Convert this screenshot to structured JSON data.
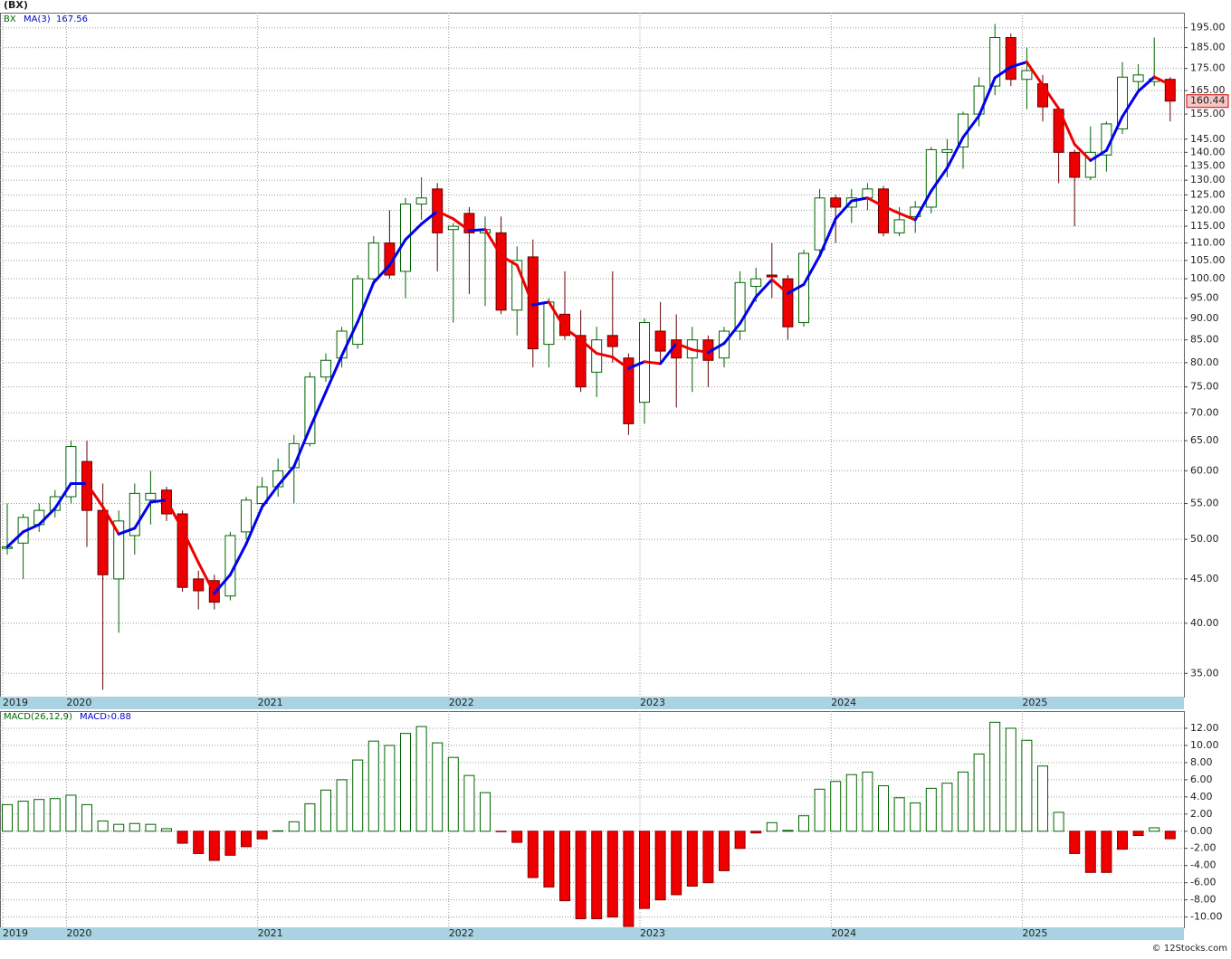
{
  "chart_data": [
    {
      "type": "candlestick",
      "title": "(BX)",
      "symbol": "BX",
      "categories": [
        "2019",
        null,
        null,
        null,
        "2020",
        null,
        null,
        null,
        null,
        null,
        null,
        null,
        null,
        null,
        null,
        null,
        "2021",
        null,
        null,
        null,
        null,
        null,
        null,
        null,
        null,
        null,
        null,
        null,
        "2022",
        null,
        null,
        null,
        null,
        null,
        null,
        null,
        null,
        null,
        null,
        null,
        "2023",
        null,
        null,
        null,
        null,
        null,
        null,
        null,
        null,
        null,
        null,
        null,
        "2024",
        null,
        null,
        null,
        null,
        null,
        null,
        null,
        null,
        null,
        null,
        null,
        "2025",
        null,
        null,
        null,
        null,
        null,
        null,
        null,
        null,
        null
      ],
      "open": [
        48.8,
        49.5,
        52,
        54,
        56,
        61.5,
        54,
        45,
        50.5,
        55.5,
        57,
        53.5,
        45,
        44.8,
        43,
        51,
        55,
        57.5,
        60.5,
        64.5,
        77,
        81,
        84,
        100,
        110,
        102,
        122,
        127,
        114,
        119,
        113,
        113,
        92,
        106,
        84,
        91,
        86,
        78,
        86,
        81,
        72,
        87,
        85,
        81,
        85,
        81,
        87,
        98,
        101,
        100,
        89,
        108,
        124,
        121,
        124,
        127,
        113,
        118,
        121,
        140,
        142,
        155,
        167,
        190,
        170,
        168,
        157,
        140,
        131,
        139,
        149,
        169,
        169,
        170
      ],
      "high": [
        55,
        53.5,
        55,
        57,
        65,
        65,
        58,
        54,
        58,
        60,
        57.5,
        54,
        46,
        45.5,
        51,
        56,
        59,
        62,
        66,
        78,
        82,
        88,
        101,
        112,
        120,
        124,
        131,
        129,
        116,
        121,
        118,
        118,
        109,
        111,
        95,
        102,
        92,
        88,
        102,
        82,
        90,
        94,
        91,
        88,
        86,
        88,
        102,
        103,
        110,
        101,
        108,
        127,
        125,
        127,
        129,
        128,
        121,
        123,
        142,
        145,
        156,
        171,
        197,
        192,
        185,
        172,
        158,
        141,
        150,
        152,
        178,
        177,
        190,
        171
      ],
      "low": [
        48,
        45,
        51,
        53,
        55,
        49,
        33.5,
        39,
        48,
        52,
        52.5,
        43.5,
        41.5,
        41.5,
        42.5,
        50,
        54,
        56,
        55,
        64,
        76,
        79,
        83,
        99,
        100,
        95,
        117,
        102,
        89,
        96,
        93,
        91,
        86,
        79,
        79,
        85,
        74,
        73,
        80,
        66,
        68,
        80,
        71,
        74,
        75,
        79,
        85,
        94,
        95,
        85,
        88,
        107,
        110,
        116,
        120,
        112,
        112,
        113,
        119,
        131,
        134,
        150,
        163,
        167,
        157,
        152,
        129,
        115,
        130,
        133,
        147,
        165,
        167,
        152
      ],
      "close": [
        49,
        53,
        54,
        56,
        64,
        54,
        45.5,
        52.5,
        56.5,
        56.5,
        53.5,
        44,
        43.6,
        42.3,
        50.5,
        55.5,
        57.5,
        60,
        64.5,
        77,
        80.5,
        87,
        100,
        110,
        101,
        122,
        124,
        113,
        115,
        113,
        114,
        92,
        105,
        83,
        94,
        86,
        75,
        85,
        83.5,
        68,
        89,
        82.5,
        81,
        85,
        80.5,
        87,
        99,
        100,
        100.5,
        88,
        107,
        124,
        121,
        124,
        127,
        113,
        117,
        121,
        141,
        141,
        155,
        167,
        190,
        170,
        174,
        158,
        140,
        131,
        140,
        151,
        171,
        172,
        170.25,
        160.44
      ],
      "up_color": "#006400",
      "down_color": "#ee0000",
      "series": [
        {
          "name": "MA(3)",
          "up_color": "#0000ee",
          "down_color": "#ee0000",
          "values": [
            49,
            51,
            52.0,
            54.3,
            58.0,
            58.0,
            54.5,
            50.7,
            51.5,
            55.2,
            55.5,
            51.3,
            47.0,
            43.3,
            45.5,
            49.4,
            54.5,
            57.7,
            60.7,
            67.2,
            74.0,
            81.5,
            89.2,
            99.0,
            103.7,
            111.0,
            115.7,
            119.7,
            117.3,
            113.7,
            114.0,
            106.3,
            103.7,
            93.3,
            94.0,
            87.7,
            85.0,
            82.0,
            81.2,
            78.8,
            80.2,
            79.8,
            84.2,
            82.8,
            82.2,
            84.2,
            88.8,
            95.3,
            99.8,
            96.2,
            98.5,
            106.3,
            117.3,
            123.0,
            124.0,
            121.3,
            119.0,
            117.0,
            126.3,
            134.3,
            145.7,
            154.3,
            170.7,
            175.7,
            178.0,
            167.3,
            157.3,
            143.0,
            137.0,
            140.7,
            154.0,
            164.7,
            171.1,
            167.56
          ]
        }
      ],
      "log_scale": true,
      "grid": true,
      "ylim": [
        32.9,
        203
      ],
      "yticks": [
        {
          "value": 35,
          "label": "35.00"
        },
        {
          "value": 40,
          "label": "40.00"
        },
        {
          "value": 45,
          "label": "45.00"
        },
        {
          "value": 50,
          "label": "50.00"
        },
        {
          "value": 55,
          "label": "55.00"
        },
        {
          "value": 60,
          "label": "60.00"
        },
        {
          "value": 65,
          "label": "65.00"
        },
        {
          "value": 70,
          "label": "70.00"
        },
        {
          "value": 75,
          "label": "75.00"
        },
        {
          "value": 80,
          "label": "80.00"
        },
        {
          "value": 85,
          "label": "85.00"
        },
        {
          "value": 90,
          "label": "90.00"
        },
        {
          "value": 95,
          "label": "95.00"
        },
        {
          "value": 100,
          "label": "100.00"
        },
        {
          "value": 105,
          "label": "105.00"
        },
        {
          "value": 110,
          "label": "110.00"
        },
        {
          "value": 115,
          "label": "115.00"
        },
        {
          "value": 120,
          "label": "120.00"
        },
        {
          "value": 125,
          "label": "125.00"
        },
        {
          "value": 130,
          "label": "130.00"
        },
        {
          "value": 135,
          "label": "135.00"
        },
        {
          "value": 140,
          "label": "140.00"
        },
        {
          "value": 145,
          "label": "145.00"
        },
        {
          "value": 155,
          "label": "155.00"
        },
        {
          "value": 165,
          "label": "165.00"
        },
        {
          "value": 175,
          "label": "175.00"
        },
        {
          "value": 185,
          "label": "185.00"
        },
        {
          "value": 195,
          "label": "195.00"
        }
      ]
    },
    {
      "type": "bar",
      "title": "MACD(26,12,9)",
      "legend_label": "MACD:",
      "categories": [
        "2019",
        null,
        null,
        null,
        "2020",
        null,
        null,
        null,
        null,
        null,
        null,
        null,
        null,
        null,
        null,
        null,
        "2021",
        null,
        null,
        null,
        null,
        null,
        null,
        null,
        null,
        null,
        null,
        null,
        "2022",
        null,
        null,
        null,
        null,
        null,
        null,
        null,
        null,
        null,
        null,
        null,
        "2023",
        null,
        null,
        null,
        null,
        null,
        null,
        null,
        null,
        null,
        null,
        null,
        "2024",
        null,
        null,
        null,
        null,
        null,
        null,
        null,
        null,
        null,
        null,
        null,
        "2025",
        null,
        null,
        null,
        null,
        null,
        null,
        null,
        null,
        null
      ],
      "values": [
        3.1,
        3.5,
        3.7,
        3.8,
        4.2,
        3.1,
        1.2,
        0.8,
        0.9,
        0.8,
        0.3,
        -1.4,
        -2.6,
        -3.4,
        -2.8,
        -1.8,
        -0.9,
        0.05,
        1.1,
        3.2,
        4.8,
        6.0,
        8.3,
        10.5,
        10.0,
        11.4,
        12.2,
        10.3,
        8.6,
        6.5,
        4.5,
        -0.05,
        -1.3,
        -5.4,
        -6.5,
        -8.1,
        -10.2,
        -10.2,
        -10.0,
        -11.1,
        -9.0,
        -8.0,
        -7.4,
        -6.4,
        -6.0,
        -4.6,
        -2.0,
        -0.2,
        1.0,
        0.1,
        1.8,
        4.9,
        5.8,
        6.6,
        6.9,
        5.3,
        3.9,
        3.3,
        5.0,
        5.6,
        6.9,
        9.0,
        12.7,
        12.0,
        10.6,
        7.6,
        2.2,
        -2.6,
        -4.8,
        -4.8,
        -2.1,
        -0.5,
        0.4,
        -0.88
      ],
      "up_color": "#006400",
      "down_color": "#ee0000",
      "grid": true,
      "ylim": [
        -11.2,
        14
      ],
      "yticks": [
        {
          "value": -10,
          "label": "-10.00"
        },
        {
          "value": -8,
          "label": "-8.00"
        },
        {
          "value": -6,
          "label": "-6.00"
        },
        {
          "value": -4,
          "label": "-4.00"
        },
        {
          "value": -2,
          "label": "-2.00"
        },
        {
          "value": 0,
          "label": "0.00"
        },
        {
          "value": 2,
          "label": "2.00"
        },
        {
          "value": 4,
          "label": "4.00"
        },
        {
          "value": 6,
          "label": "6.00"
        },
        {
          "value": 8,
          "label": "8.00"
        },
        {
          "value": 10,
          "label": "10.00"
        },
        {
          "value": 12,
          "label": "12.00"
        }
      ]
    }
  ],
  "footer": "© 12Stocks.com"
}
